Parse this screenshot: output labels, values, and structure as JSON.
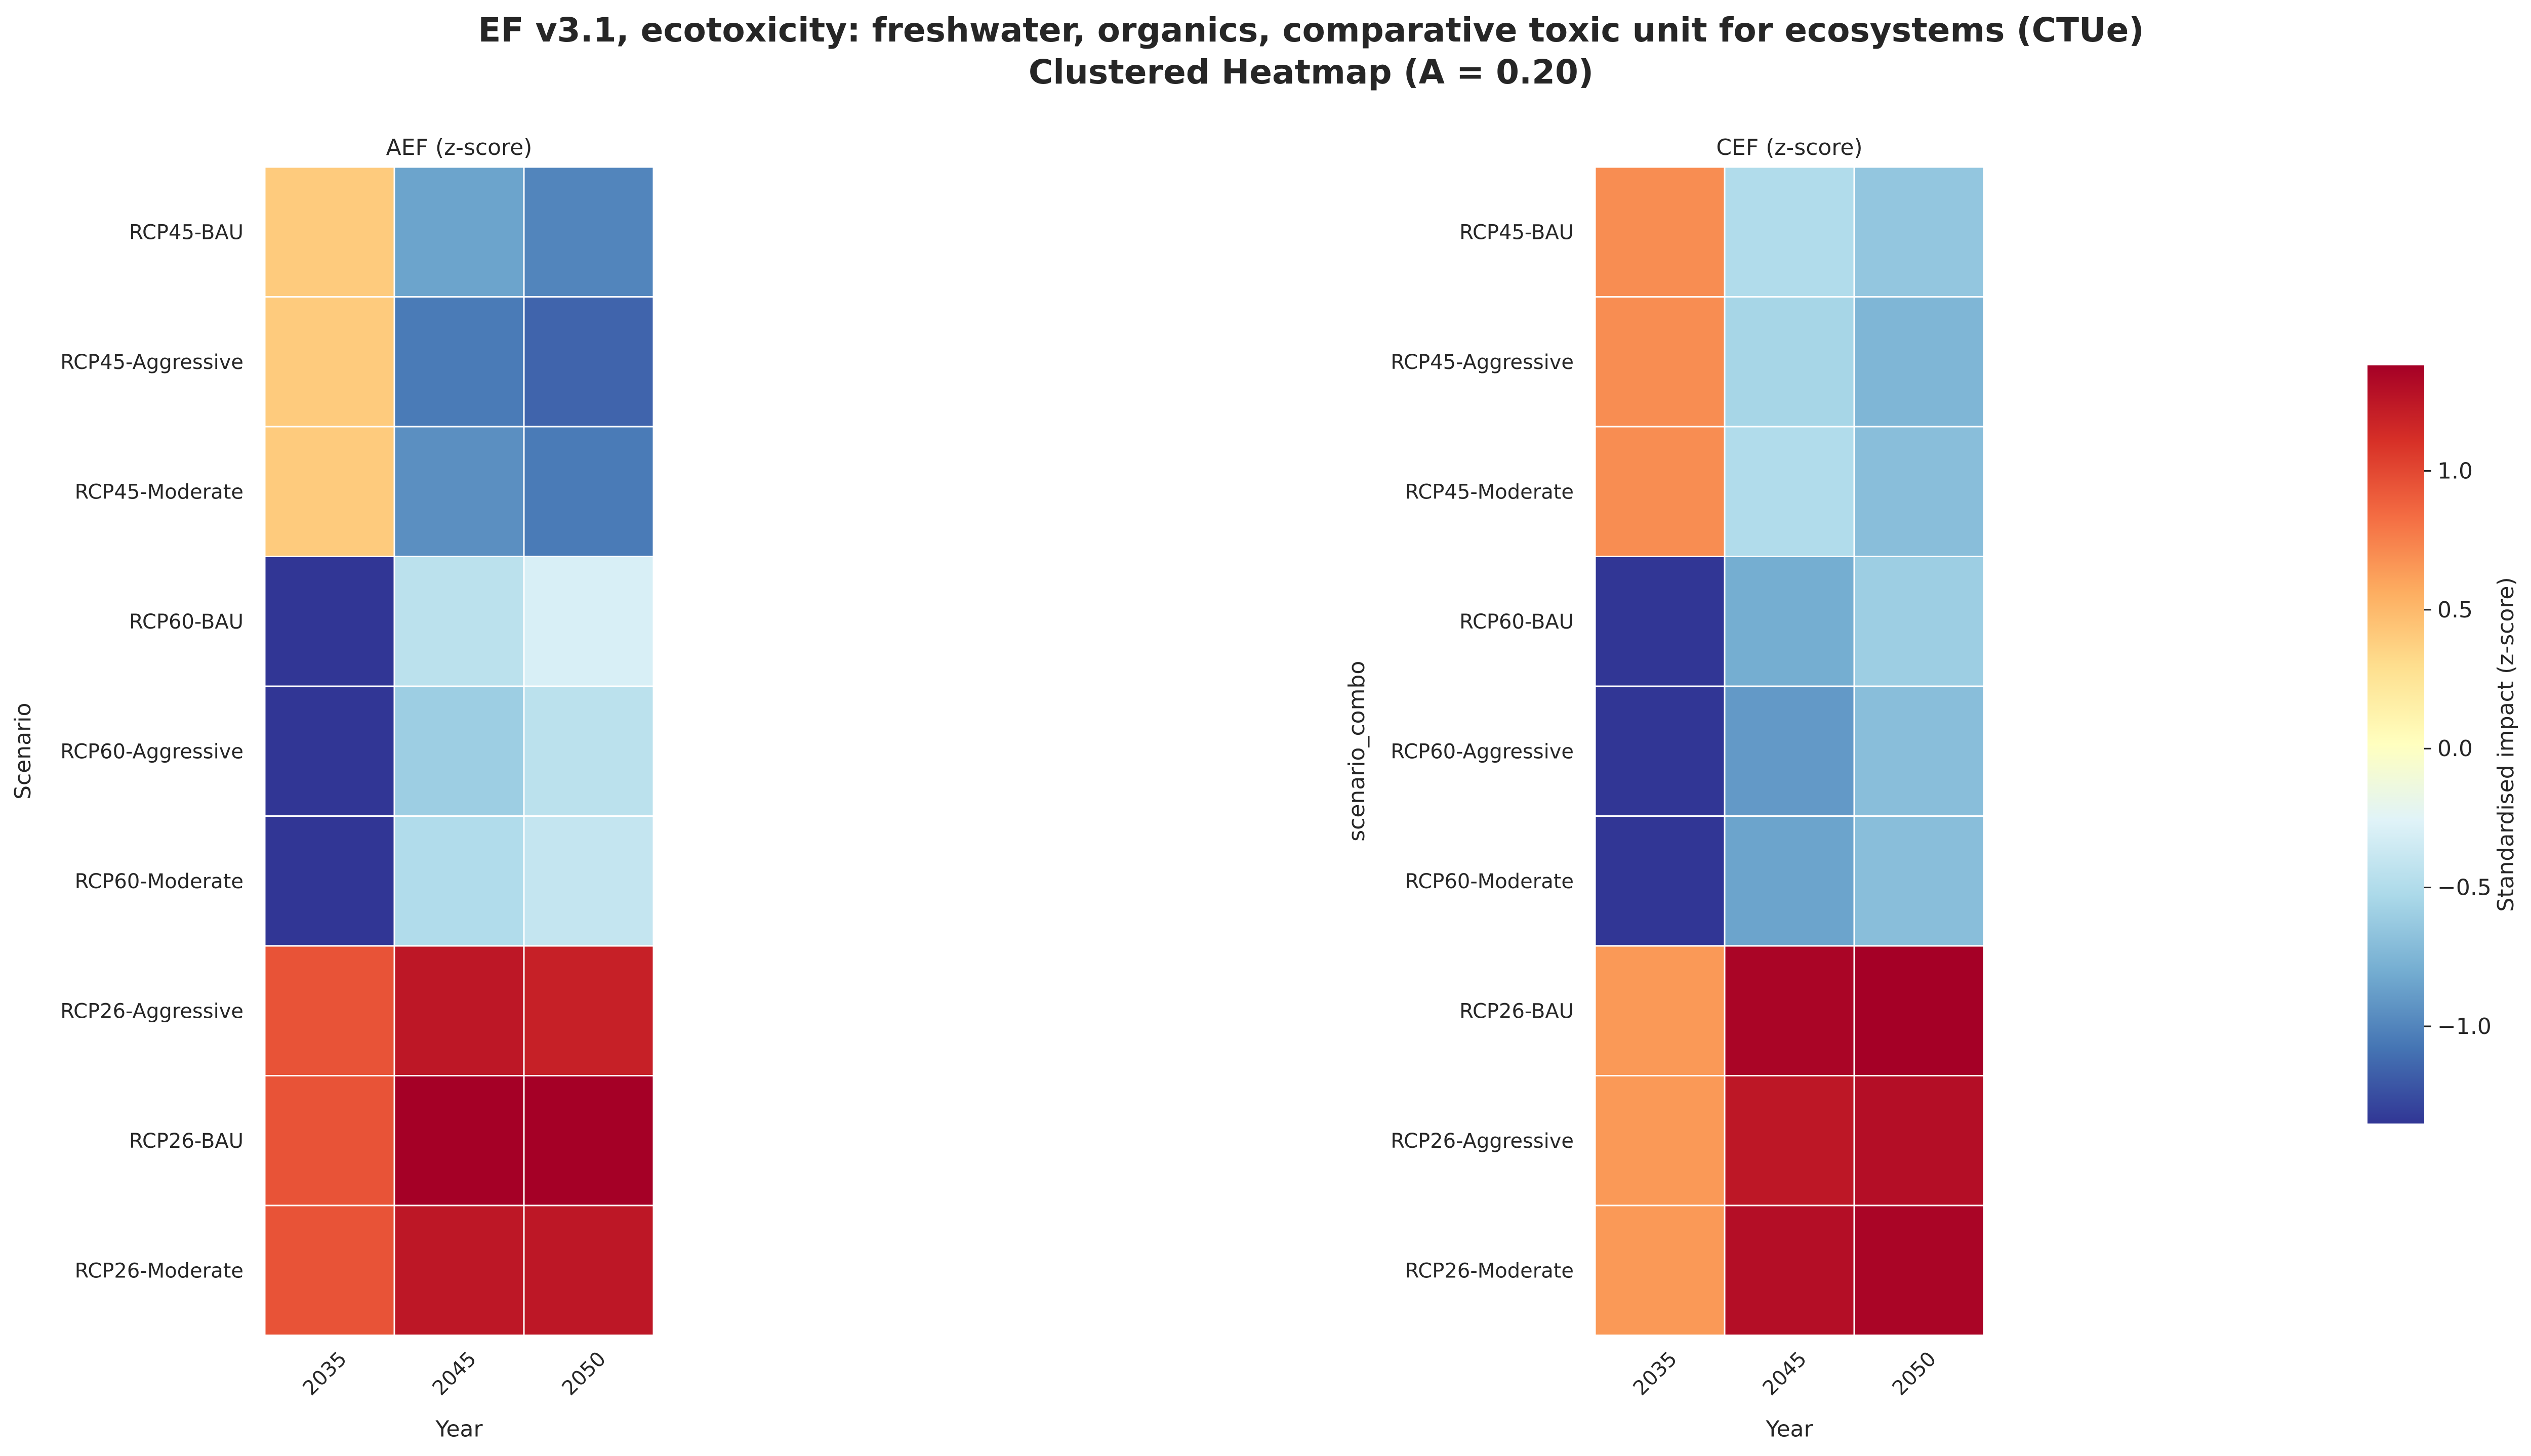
{
  "chart_data": {
    "type": "heatmap",
    "title": "EF v3.1, ecotoxicity: freshwater, organics, comparative toxic unit for ecosystems (CTUe)",
    "subtitle": "Clustered Heatmap (A = 0.20)",
    "colormap": "RdYlBu_r",
    "value_range": [
      -1.35,
      1.38
    ],
    "panels": [
      {
        "title": "AEF (z-score)",
        "xlabel": "Year",
        "ylabel": "Scenario",
        "x": [
          "2035",
          "2045",
          "2050"
        ],
        "y": [
          "RCP45-BAU",
          "RCP45-Aggressive",
          "RCP45-Moderate",
          "RCP60-BAU",
          "RCP60-Aggressive",
          "RCP60-Moderate",
          "RCP26-Aggressive",
          "RCP26-BAU",
          "RCP26-Moderate"
        ],
        "values": [
          [
            0.4,
            -0.85,
            -1.0
          ],
          [
            0.4,
            -1.05,
            -1.15
          ],
          [
            0.4,
            -0.95,
            -1.05
          ],
          [
            -1.35,
            -0.45,
            -0.3
          ],
          [
            -1.35,
            -0.6,
            -0.45
          ],
          [
            -1.35,
            -0.5,
            -0.4
          ],
          [
            0.95,
            1.25,
            1.2
          ],
          [
            0.95,
            1.38,
            1.38
          ],
          [
            0.95,
            1.25,
            1.25
          ]
        ]
      },
      {
        "title": "CEF (z-score)",
        "xlabel": "Year",
        "ylabel": "scenario_combo",
        "x": [
          "2035",
          "2045",
          "2050"
        ],
        "y": [
          "RCP45-BAU",
          "RCP45-Aggressive",
          "RCP45-Moderate",
          "RCP60-BAU",
          "RCP60-Aggressive",
          "RCP60-Moderate",
          "RCP26-BAU",
          "RCP26-Aggressive",
          "RCP26-Moderate"
        ],
        "values": [
          [
            0.7,
            -0.5,
            -0.65
          ],
          [
            0.7,
            -0.55,
            -0.75
          ],
          [
            0.7,
            -0.5,
            -0.7
          ],
          [
            -1.35,
            -0.8,
            -0.6
          ],
          [
            -1.35,
            -0.9,
            -0.7
          ],
          [
            -1.35,
            -0.85,
            -0.7
          ],
          [
            0.65,
            1.35,
            1.38
          ],
          [
            0.65,
            1.25,
            1.3
          ],
          [
            0.65,
            1.3,
            1.35
          ]
        ]
      }
    ],
    "colorbar": {
      "label": "Standardised impact (z-score)",
      "ticks": [
        -1.0,
        -0.5,
        0.0,
        0.5,
        1.0
      ]
    }
  }
}
